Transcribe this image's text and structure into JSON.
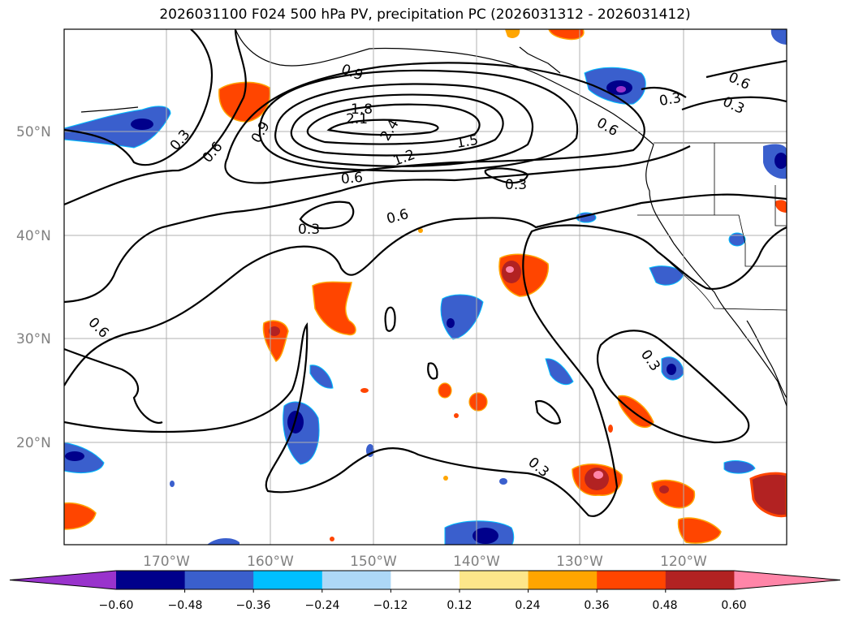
{
  "title": "2026031100 F024 500 hPa PV, precipitation PC (2026031312 - 2026031412)",
  "lat_labels": [
    "50°N",
    "40°N",
    "30°N",
    "20°N"
  ],
  "lon_labels": [
    "170°W",
    "160°W",
    "150°W",
    "140°W",
    "130°W",
    "120°W"
  ],
  "colorbar": {
    "ticks": [
      "−0.60",
      "−0.48",
      "−0.36",
      "−0.24",
      "−0.12",
      "0.12",
      "0.24",
      "0.36",
      "0.48",
      "0.60"
    ],
    "colors": [
      "#9933cc",
      "#00008b",
      "#3a5fcd",
      "#00bfff",
      "#add8f7",
      "#ffffff",
      "#fde68a",
      "#ffa500",
      "#ff4500",
      "#b22222",
      "#ff85a8"
    ]
  },
  "contour_labels": [
    "0.9",
    "1.8",
    "2.1",
    "2.4",
    "1.5",
    "1.2",
    "0.6",
    "0.3",
    "0.9",
    "0.6",
    "0.3",
    "0.6",
    "0.3",
    "0.6",
    "0.3",
    "0.6",
    "0.3",
    "0.3",
    "0.6",
    "0.3"
  ]
}
